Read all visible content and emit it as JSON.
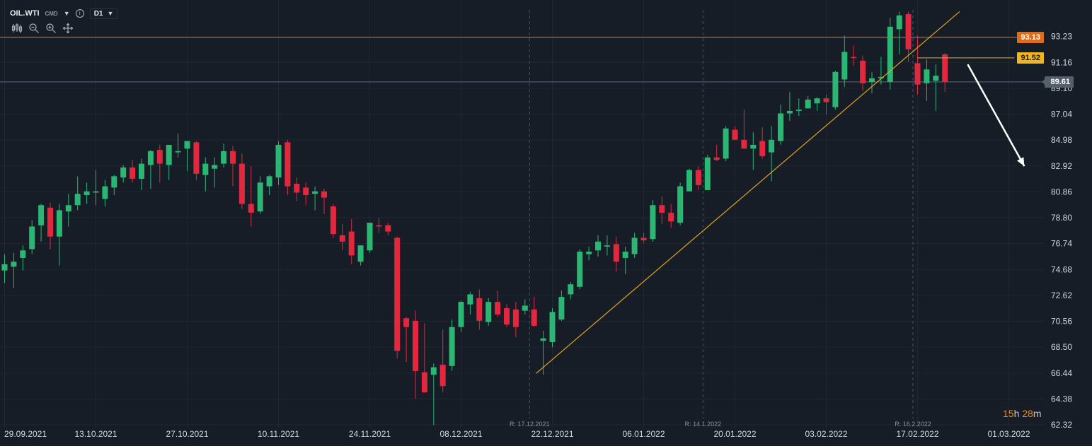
{
  "header": {
    "symbol": "OIL.WTI",
    "market": "CMD",
    "timeframe": "D1"
  },
  "toolbar_icons": [
    "candles-icon",
    "zoom-out-icon",
    "zoom-in-icon",
    "move-icon"
  ],
  "price_tags": {
    "resistance": "93.13",
    "line_end": "91.52",
    "current": "89.61"
  },
  "countdown": {
    "hours": "15",
    "h": "h",
    "minutes": "28",
    "m": "m"
  },
  "colors": {
    "background": "#161d27",
    "bull": "#2bb673",
    "bear": "#e2283e",
    "trendline": "#e0a21a",
    "resistance": "#e06b19",
    "current": "#5f6a78",
    "arrow": "#ffffff",
    "grid": "#1f2733"
  },
  "chart_data": {
    "type": "candlestick",
    "instrument": "OIL.WTI",
    "timeframe": "D1",
    "ylim": [
      62.32,
      95.0
    ],
    "y_ticks": [
      62.32,
      64.38,
      66.44,
      68.5,
      70.56,
      72.62,
      74.68,
      76.74,
      78.8,
      80.86,
      82.92,
      84.98,
      87.04,
      89.1,
      91.16,
      93.23
    ],
    "y_tick_labels": [
      "62.32",
      "64.38",
      "66.44",
      "68.50",
      "70.56",
      "72.62",
      "74.68",
      "76.74",
      "78.80",
      "80.86",
      "82.92",
      "84.98",
      "87.04",
      "89.10",
      "91.16",
      "93.23"
    ],
    "x_tick_labels": [
      "29.09.2021",
      "13.10.2021",
      "27.10.2021",
      "10.11.2021",
      "24.11.2021",
      "08.12.2021",
      "22.12.2021",
      "06.01.2022",
      "20.01.2022",
      "03.02.2022",
      "17.02.2022",
      "01.03.2022"
    ],
    "x_tick_index": [
      0,
      10,
      20,
      30,
      40,
      50,
      60,
      70,
      80,
      90,
      100,
      110
    ],
    "candles": [
      {
        "o": 74.6,
        "h": 75.9,
        "l": 73.6,
        "c": 75.1
      },
      {
        "o": 74.9,
        "h": 76.0,
        "l": 73.2,
        "c": 75.3
      },
      {
        "o": 75.6,
        "h": 76.6,
        "l": 74.6,
        "c": 76.2
      },
      {
        "o": 76.3,
        "h": 78.6,
        "l": 75.9,
        "c": 78.1
      },
      {
        "o": 78.2,
        "h": 79.9,
        "l": 76.9,
        "c": 79.8
      },
      {
        "o": 79.6,
        "h": 80.0,
        "l": 76.3,
        "c": 77.3
      },
      {
        "o": 77.3,
        "h": 79.9,
        "l": 75.0,
        "c": 79.4
      },
      {
        "o": 79.3,
        "h": 80.7,
        "l": 78.1,
        "c": 79.8
      },
      {
        "o": 79.8,
        "h": 82.1,
        "l": 79.4,
        "c": 80.7
      },
      {
        "o": 80.6,
        "h": 81.6,
        "l": 79.9,
        "c": 80.9
      },
      {
        "o": 80.8,
        "h": 82.6,
        "l": 79.8,
        "c": 80.9
      },
      {
        "o": 80.3,
        "h": 81.8,
        "l": 79.7,
        "c": 81.3
      },
      {
        "o": 81.2,
        "h": 82.2,
        "l": 80.6,
        "c": 82.1
      },
      {
        "o": 82.0,
        "h": 83.0,
        "l": 81.6,
        "c": 82.8
      },
      {
        "o": 82.8,
        "h": 83.4,
        "l": 81.6,
        "c": 81.9
      },
      {
        "o": 81.9,
        "h": 83.5,
        "l": 81.0,
        "c": 83.1
      },
      {
        "o": 83.0,
        "h": 84.2,
        "l": 81.1,
        "c": 84.1
      },
      {
        "o": 84.2,
        "h": 84.6,
        "l": 81.6,
        "c": 83.1
      },
      {
        "o": 83.0,
        "h": 84.5,
        "l": 81.8,
        "c": 84.6
      },
      {
        "o": 84.0,
        "h": 85.5,
        "l": 83.6,
        "c": 84.1
      },
      {
        "o": 84.3,
        "h": 84.9,
        "l": 82.5,
        "c": 84.9
      },
      {
        "o": 84.8,
        "h": 84.9,
        "l": 81.8,
        "c": 82.3
      },
      {
        "o": 82.2,
        "h": 83.6,
        "l": 80.9,
        "c": 83.1
      },
      {
        "o": 82.7,
        "h": 83.6,
        "l": 81.2,
        "c": 83.0
      },
      {
        "o": 83.1,
        "h": 84.7,
        "l": 82.8,
        "c": 84.1
      },
      {
        "o": 84.1,
        "h": 84.5,
        "l": 81.3,
        "c": 83.1
      },
      {
        "o": 83.1,
        "h": 83.9,
        "l": 79.5,
        "c": 79.9
      },
      {
        "o": 79.9,
        "h": 82.9,
        "l": 78.1,
        "c": 79.2
      },
      {
        "o": 79.3,
        "h": 82.1,
        "l": 79.1,
        "c": 81.6
      },
      {
        "o": 81.3,
        "h": 82.2,
        "l": 80.6,
        "c": 82.1
      },
      {
        "o": 82.0,
        "h": 84.9,
        "l": 81.4,
        "c": 84.6
      },
      {
        "o": 84.8,
        "h": 85.0,
        "l": 80.6,
        "c": 81.3
      },
      {
        "o": 81.5,
        "h": 82.0,
        "l": 80.1,
        "c": 80.8
      },
      {
        "o": 81.2,
        "h": 81.6,
        "l": 79.8,
        "c": 80.6
      },
      {
        "o": 80.7,
        "h": 81.3,
        "l": 79.4,
        "c": 80.9
      },
      {
        "o": 80.9,
        "h": 81.1,
        "l": 79.1,
        "c": 80.4
      },
      {
        "o": 79.7,
        "h": 79.9,
        "l": 77.2,
        "c": 77.5
      },
      {
        "o": 77.4,
        "h": 78.3,
        "l": 76.2,
        "c": 76.9
      },
      {
        "o": 77.7,
        "h": 78.7,
        "l": 75.1,
        "c": 75.8
      },
      {
        "o": 75.3,
        "h": 76.6,
        "l": 75.0,
        "c": 76.6
      },
      {
        "o": 76.2,
        "h": 78.4,
        "l": 76.0,
        "c": 78.4
      },
      {
        "o": 78.2,
        "h": 78.8,
        "l": 77.6,
        "c": 78.1
      },
      {
        "o": 78.2,
        "h": 78.4,
        "l": 77.4,
        "c": 77.7
      },
      {
        "o": 77.2,
        "h": 77.3,
        "l": 67.6,
        "c": 68.2
      },
      {
        "o": 70.8,
        "h": 70.9,
        "l": 67.3,
        "c": 70.1
      },
      {
        "o": 70.6,
        "h": 71.4,
        "l": 64.4,
        "c": 66.6
      },
      {
        "o": 66.5,
        "h": 70.4,
        "l": 64.9,
        "c": 64.9
      },
      {
        "o": 66.3,
        "h": 67.2,
        "l": 62.3,
        "c": 66.9
      },
      {
        "o": 67.1,
        "h": 69.9,
        "l": 64.9,
        "c": 65.4
      },
      {
        "o": 67.0,
        "h": 70.7,
        "l": 66.6,
        "c": 70.1
      },
      {
        "o": 70.1,
        "h": 72.2,
        "l": 69.7,
        "c": 72.1
      },
      {
        "o": 71.9,
        "h": 72.9,
        "l": 71.1,
        "c": 72.7
      },
      {
        "o": 72.4,
        "h": 73.1,
        "l": 69.9,
        "c": 70.6
      },
      {
        "o": 70.5,
        "h": 72.4,
        "l": 70.2,
        "c": 72.1
      },
      {
        "o": 72.1,
        "h": 73.0,
        "l": 70.9,
        "c": 71.1
      },
      {
        "o": 71.6,
        "h": 71.9,
        "l": 70.1,
        "c": 70.3
      },
      {
        "o": 71.5,
        "h": 72.1,
        "l": 69.3,
        "c": 70.1
      },
      {
        "o": 71.4,
        "h": 72.3,
        "l": 71.1,
        "c": 71.8
      },
      {
        "o": 71.5,
        "h": 72.5,
        "l": 70.1,
        "c": 70.2
      },
      {
        "o": 69.0,
        "h": 69.8,
        "l": 66.3,
        "c": 69.2
      },
      {
        "o": 68.9,
        "h": 71.6,
        "l": 68.5,
        "c": 71.3
      },
      {
        "o": 70.7,
        "h": 73.0,
        "l": 70.6,
        "c": 72.5
      },
      {
        "o": 72.7,
        "h": 73.7,
        "l": 72.3,
        "c": 73.5
      },
      {
        "o": 73.3,
        "h": 76.3,
        "l": 73.1,
        "c": 76.1
      },
      {
        "o": 75.9,
        "h": 76.5,
        "l": 75.4,
        "c": 76.1
      },
      {
        "o": 76.2,
        "h": 77.4,
        "l": 75.7,
        "c": 76.9
      },
      {
        "o": 76.5,
        "h": 77.4,
        "l": 75.8,
        "c": 76.6
      },
      {
        "o": 76.7,
        "h": 77.3,
        "l": 74.5,
        "c": 75.3
      },
      {
        "o": 75.6,
        "h": 76.5,
        "l": 74.3,
        "c": 76.1
      },
      {
        "o": 75.9,
        "h": 77.6,
        "l": 75.6,
        "c": 77.2
      },
      {
        "o": 77.2,
        "h": 77.6,
        "l": 76.8,
        "c": 77.0
      },
      {
        "o": 77.1,
        "h": 80.2,
        "l": 76.9,
        "c": 79.8
      },
      {
        "o": 79.8,
        "h": 80.5,
        "l": 78.3,
        "c": 79.2
      },
      {
        "o": 79.2,
        "h": 79.9,
        "l": 78.0,
        "c": 78.5
      },
      {
        "o": 78.4,
        "h": 81.6,
        "l": 78.2,
        "c": 81.3
      },
      {
        "o": 80.9,
        "h": 82.7,
        "l": 80.9,
        "c": 82.6
      },
      {
        "o": 82.6,
        "h": 82.9,
        "l": 81.0,
        "c": 81.4
      },
      {
        "o": 81.0,
        "h": 83.8,
        "l": 81.0,
        "c": 83.6
      },
      {
        "o": 83.6,
        "h": 84.6,
        "l": 83.3,
        "c": 83.4
      },
      {
        "o": 83.5,
        "h": 86.1,
        "l": 83.3,
        "c": 85.9
      },
      {
        "o": 85.8,
        "h": 86.1,
        "l": 85.0,
        "c": 85.0
      },
      {
        "o": 85.0,
        "h": 87.4,
        "l": 84.4,
        "c": 84.3
      },
      {
        "o": 84.3,
        "h": 85.6,
        "l": 82.6,
        "c": 84.6
      },
      {
        "o": 84.9,
        "h": 86.0,
        "l": 83.5,
        "c": 83.7
      },
      {
        "o": 84.0,
        "h": 86.1,
        "l": 81.7,
        "c": 85.0
      },
      {
        "o": 84.9,
        "h": 87.8,
        "l": 84.6,
        "c": 87.1
      },
      {
        "o": 87.1,
        "h": 88.8,
        "l": 86.5,
        "c": 87.3
      },
      {
        "o": 87.3,
        "h": 88.3,
        "l": 86.9,
        "c": 87.4
      },
      {
        "o": 87.5,
        "h": 88.5,
        "l": 87.5,
        "c": 88.2
      },
      {
        "o": 87.9,
        "h": 88.4,
        "l": 87.3,
        "c": 88.3
      },
      {
        "o": 88.3,
        "h": 88.6,
        "l": 87.0,
        "c": 88.0
      },
      {
        "o": 87.6,
        "h": 90.5,
        "l": 87.4,
        "c": 90.4
      },
      {
        "o": 89.8,
        "h": 93.3,
        "l": 89.2,
        "c": 92.0
      },
      {
        "o": 91.6,
        "h": 92.5,
        "l": 90.9,
        "c": 91.5
      },
      {
        "o": 91.3,
        "h": 91.7,
        "l": 88.9,
        "c": 89.5
      },
      {
        "o": 89.6,
        "h": 90.4,
        "l": 88.7,
        "c": 89.9
      },
      {
        "o": 89.9,
        "h": 91.6,
        "l": 89.4,
        "c": 90.0
      },
      {
        "o": 89.6,
        "h": 94.7,
        "l": 89.0,
        "c": 94.0
      },
      {
        "o": 93.8,
        "h": 95.2,
        "l": 91.8,
        "c": 94.9
      },
      {
        "o": 95.0,
        "h": 95.2,
        "l": 91.2,
        "c": 92.2
      },
      {
        "o": 91.1,
        "h": 93.3,
        "l": 88.6,
        "c": 89.4
      },
      {
        "o": 89.5,
        "h": 91.4,
        "l": 88.1,
        "c": 90.6
      },
      {
        "o": 89.7,
        "h": 91.0,
        "l": 87.3,
        "c": 90.1
      },
      {
        "o": 91.8,
        "h": 91.9,
        "l": 88.8,
        "c": 89.6
      }
    ],
    "x_index_right": 128,
    "trendline": {
      "x1": 58.2,
      "y1": 66.4,
      "x2": 104.6,
      "y2": 95.2,
      "label": ""
    },
    "resistance_level": 93.13,
    "level_segment": {
      "x1": 100.0,
      "x2": 110.6,
      "y": 91.52
    },
    "current_price": 89.61,
    "arrow": {
      "from_x": 105.5,
      "from_y": 91.0,
      "to_x": 111.7,
      "to_y": 82.9
    },
    "separators": [
      {
        "x": 57.5,
        "label": "R: 17.12.2021"
      },
      {
        "x": 76.5,
        "label": "R: 14.1.2022"
      },
      {
        "x": 99.5,
        "label": "R: 16.2.2022"
      }
    ],
    "grid": true
  }
}
